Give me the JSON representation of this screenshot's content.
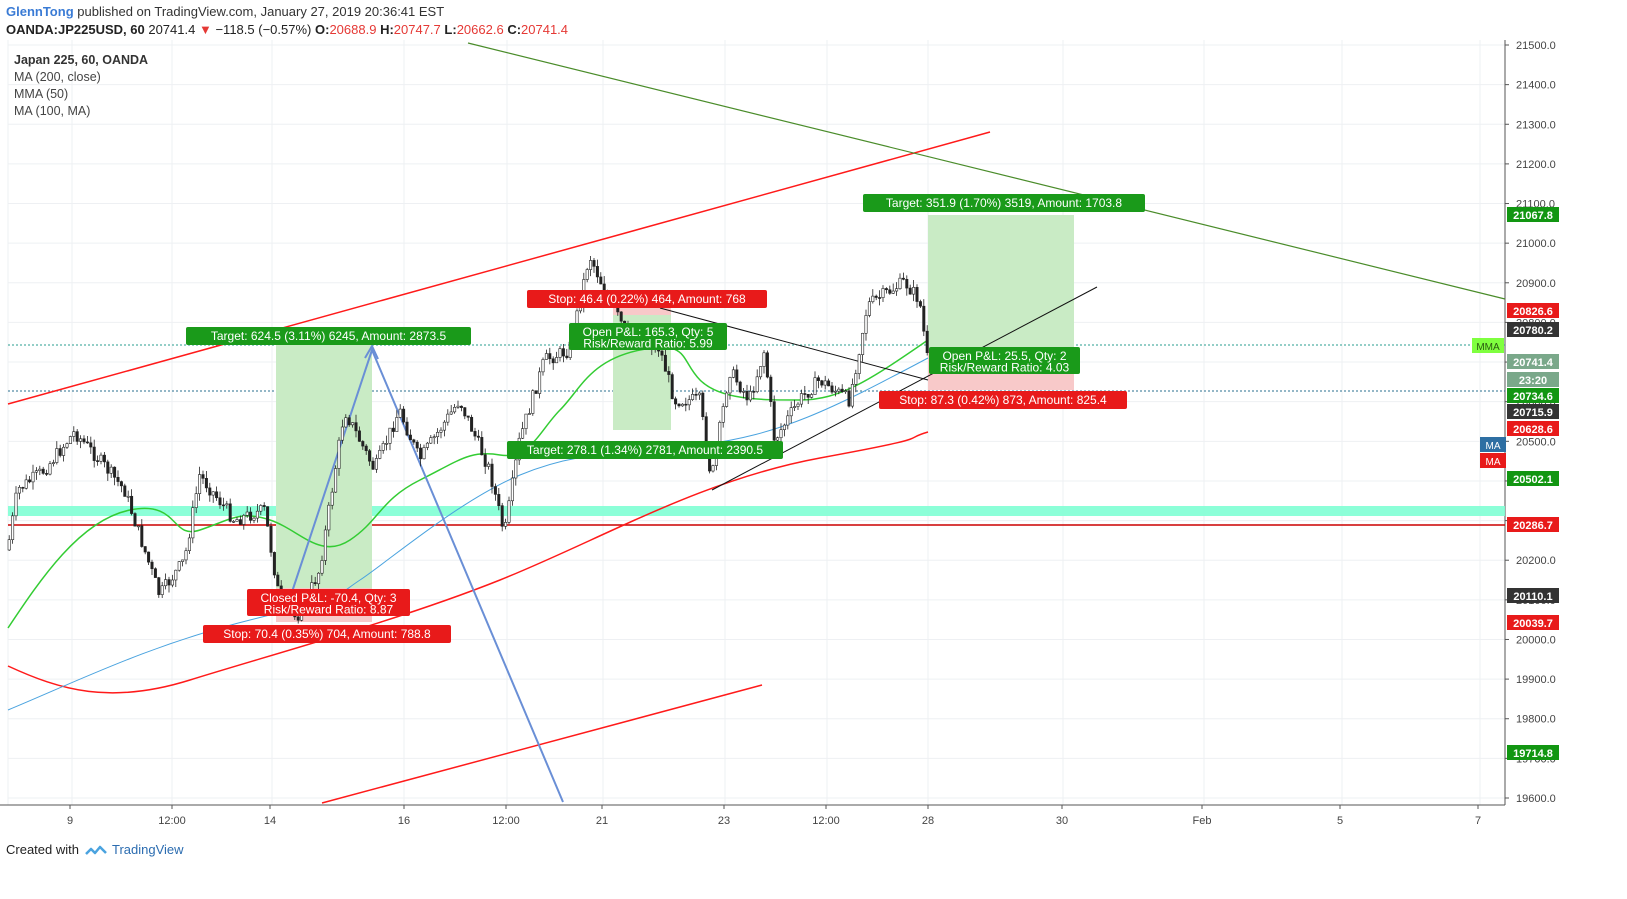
{
  "header": {
    "author": "GlennTong",
    "published": "published on TradingView.com, January 27, 2019 20:36:41 EST",
    "symbol": "OANDA:JP225USD, 60",
    "price": "20741.4",
    "change": "−118.5 (−0.57%)",
    "o_label": "O:",
    "o": "20688.9",
    "h_label": "H:",
    "h": "20747.7",
    "l_label": "L:",
    "l": "20662.6",
    "c_label": "C:",
    "c": "20741.4"
  },
  "legend": {
    "title": "Japan 225, 60, OANDA",
    "items": [
      "MA (200, close)",
      "MMA (50)",
      "MA (100, MA)"
    ]
  },
  "footer": {
    "created_with": "Created with",
    "brand": "TradingView"
  },
  "colors": {
    "up": "#26a69a",
    "down": "#ef5350",
    "candle": "#222222",
    "channel": "#ff1a1a",
    "trendline_green": "#4a8c2a",
    "arrow": "#6a8fd6",
    "mma": "#33cc33",
    "ma_blue": "#4aa3df",
    "support_band": "#7fffd4",
    "target_bg": "#c9ebc5",
    "stop_bg": "#f8c9c9",
    "label_green": "#1a9a1a",
    "label_red": "#e81a1a"
  },
  "chart_data": {
    "type": "candlestick",
    "symbol": "OANDA:JP225USD",
    "ylim": [
      19560,
      21520
    ],
    "y_ticks": [
      19600,
      19700,
      19800,
      19900,
      20000,
      20100,
      20200,
      20300,
      20400,
      20500,
      20600,
      20700,
      20800,
      20900,
      21000,
      21100,
      21200,
      21300,
      21400,
      21500
    ],
    "x_tick_labels": [
      "9",
      "12:00",
      "14",
      "16",
      "12:00",
      "21",
      "23",
      "12:00",
      "28",
      "30",
      "Feb",
      "5",
      "7"
    ],
    "series": [
      {
        "name": "MA (200, close)",
        "type": "line"
      },
      {
        "name": "MMA (50)",
        "type": "line"
      },
      {
        "name": "MA (100, MA)",
        "type": "line"
      }
    ],
    "price_labels": [
      {
        "value": "21067.8",
        "kind": "green"
      },
      {
        "value": "20826.6",
        "kind": "red"
      },
      {
        "value": "20780.2",
        "kind": "dark"
      },
      {
        "value": "20741.4",
        "kind": "gray"
      },
      {
        "value": "23:20",
        "kind": "gray"
      },
      {
        "value": "20734.6",
        "kind": "green"
      },
      {
        "value": "20715.9",
        "kind": "dark"
      },
      {
        "value": "20628.6",
        "kind": "red"
      },
      {
        "value": "20502.1",
        "kind": "green"
      },
      {
        "value": "20286.7",
        "kind": "red"
      },
      {
        "value": "20110.1",
        "kind": "dark"
      },
      {
        "value": "20039.7",
        "kind": "red"
      },
      {
        "value": "19714.8",
        "kind": "green"
      }
    ],
    "indicator_tags": [
      {
        "text": "MMA",
        "kind": "lime",
        "value": 20746
      },
      {
        "text": "MA",
        "kind": "blue",
        "value": 20503
      },
      {
        "text": "MA",
        "kind": "red",
        "value": 20475
      }
    ],
    "annotations": [
      {
        "kind": "green",
        "text": "Target: 624.5 (3.11%) 6245, Amount: 2873.5"
      },
      {
        "kind": "red",
        "text": "Closed P&L: -70.4, Qty: 3\nRisk/Reward Ratio: 8.87"
      },
      {
        "kind": "red",
        "text": "Stop: 70.4 (0.35%) 704, Amount: 788.8"
      },
      {
        "kind": "red",
        "text": "Stop: 46.4 (0.22%) 464, Amount: 768"
      },
      {
        "kind": "green",
        "text": "Open P&L: 165.3, Qty: 5\nRisk/Reward Ratio: 5.99"
      },
      {
        "kind": "green",
        "text": "Target: 278.1 (1.34%) 2781, Amount: 2390.5"
      },
      {
        "kind": "green",
        "text": "Target: 351.9 (1.70%) 3519, Amount: 1703.8"
      },
      {
        "kind": "green",
        "text": "Open P&L: 25.5, Qty: 2\nRisk/Reward Ratio: 4.03"
      },
      {
        "kind": "red",
        "text": "Stop: 87.3 (0.42%) 873, Amount: 825.4"
      }
    ]
  }
}
